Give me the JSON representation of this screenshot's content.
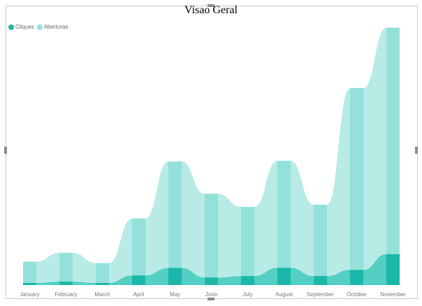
{
  "chart_data": {
    "type": "area",
    "title": "Visao Geral",
    "categories": [
      "January",
      "February",
      "March",
      "April",
      "May",
      "June",
      "July",
      "August",
      "September",
      "October",
      "November"
    ],
    "series": [
      {
        "name": "Cliques",
        "color": "#1ab7aa",
        "values": [
          3,
          5,
          3,
          14,
          25,
          11,
          13,
          25,
          13,
          22,
          45
        ]
      },
      {
        "name": "Aberturas",
        "color": "#93e1da",
        "values": [
          31,
          42,
          29,
          83,
          155,
          122,
          101,
          156,
          104,
          265,
          330
        ]
      }
    ],
    "ylim": [
      0,
      340
    ],
    "grid": false,
    "legend_position": "top-left"
  }
}
